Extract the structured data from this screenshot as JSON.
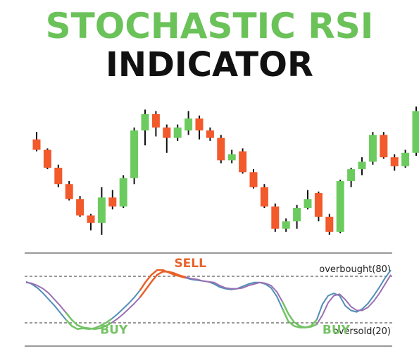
{
  "header": {
    "title_line1": "STOCHASTIC RSI",
    "title_line2": "INDICATOR"
  },
  "colors": {
    "title_green": "#6ac259",
    "title_dark": "#111111",
    "bull": "#6ccb5f",
    "bear": "#f2592b",
    "wick": "#111111",
    "stoch_k": "#4f8fb5",
    "stoch_d": "#9a6fb3",
    "signal_sell": "#e8622a",
    "signal_buy": "#74c365",
    "levels": "#333333"
  },
  "chart_data": [
    {
      "type": "candlestick",
      "title": "",
      "candles": [
        {
          "o": 72,
          "h": 77,
          "l": 64,
          "c": 65
        },
        {
          "o": 65,
          "h": 66,
          "l": 52,
          "c": 53
        },
        {
          "o": 53,
          "h": 55,
          "l": 40,
          "c": 42
        },
        {
          "o": 42,
          "h": 44,
          "l": 31,
          "c": 32
        },
        {
          "o": 32,
          "h": 34,
          "l": 20,
          "c": 21
        },
        {
          "o": 21,
          "h": 22,
          "l": 11,
          "c": 16
        },
        {
          "o": 16,
          "h": 40,
          "l": 8,
          "c": 33
        },
        {
          "o": 33,
          "h": 38,
          "l": 25,
          "c": 27
        },
        {
          "o": 27,
          "h": 48,
          "l": 26,
          "c": 46
        },
        {
          "o": 46,
          "h": 80,
          "l": 42,
          "c": 78
        },
        {
          "o": 78,
          "h": 92,
          "l": 68,
          "c": 89
        },
        {
          "o": 89,
          "h": 91,
          "l": 74,
          "c": 80
        },
        {
          "o": 80,
          "h": 82,
          "l": 63,
          "c": 73
        },
        {
          "o": 73,
          "h": 82,
          "l": 71,
          "c": 80
        },
        {
          "o": 78,
          "h": 91,
          "l": 75,
          "c": 86
        },
        {
          "o": 86,
          "h": 88,
          "l": 72,
          "c": 78
        },
        {
          "o": 78,
          "h": 80,
          "l": 71,
          "c": 73
        },
        {
          "o": 73,
          "h": 75,
          "l": 56,
          "c": 58
        },
        {
          "o": 58,
          "h": 65,
          "l": 56,
          "c": 62
        },
        {
          "o": 64,
          "h": 66,
          "l": 49,
          "c": 50
        },
        {
          "o": 50,
          "h": 52,
          "l": 39,
          "c": 40
        },
        {
          "o": 40,
          "h": 42,
          "l": 26,
          "c": 27
        },
        {
          "o": 27,
          "h": 29,
          "l": 10,
          "c": 12
        },
        {
          "o": 12,
          "h": 19,
          "l": 10,
          "c": 17
        },
        {
          "o": 17,
          "h": 28,
          "l": 12,
          "c": 26
        },
        {
          "o": 26,
          "h": 38,
          "l": 25,
          "c": 32
        },
        {
          "o": 36,
          "h": 37,
          "l": 17,
          "c": 20
        },
        {
          "o": 20,
          "h": 22,
          "l": 8,
          "c": 10
        },
        {
          "o": 10,
          "h": 45,
          "l": 9,
          "c": 44
        },
        {
          "o": 44,
          "h": 53,
          "l": 40,
          "c": 52
        },
        {
          "o": 52,
          "h": 60,
          "l": 48,
          "c": 57
        },
        {
          "o": 57,
          "h": 77,
          "l": 55,
          "c": 75
        },
        {
          "o": 75,
          "h": 77,
          "l": 59,
          "c": 60
        },
        {
          "o": 60,
          "h": 62,
          "l": 51,
          "c": 54
        },
        {
          "o": 54,
          "h": 65,
          "l": 53,
          "c": 63
        },
        {
          "o": 63,
          "h": 94,
          "l": 61,
          "c": 91
        },
        {
          "o": 91,
          "h": 101,
          "l": 90,
          "c": 98
        }
      ]
    },
    {
      "type": "line",
      "title": "",
      "ylim": [
        -10,
        110
      ],
      "levels": [
        {
          "name": "overbought",
          "value": 80,
          "label": "overbought(80)"
        },
        {
          "name": "oversold",
          "value": 20,
          "label": "oversold(20)"
        }
      ],
      "x": [
        0,
        1,
        2,
        3,
        4,
        5,
        6,
        7,
        8,
        9,
        10,
        11,
        12,
        13,
        14,
        15,
        16,
        17,
        18,
        19,
        20,
        21,
        22,
        23,
        24,
        25,
        26,
        27,
        28,
        29,
        30,
        31,
        32,
        33,
        34,
        35,
        36,
        37,
        38,
        39,
        40,
        41,
        42,
        43,
        44,
        45,
        46,
        47,
        48,
        49,
        50,
        51,
        52,
        53,
        54,
        55,
        56,
        57,
        58,
        59,
        60,
        61,
        62,
        63,
        64
      ],
      "series": [
        {
          "name": "",
          "role": "k",
          "values": [
            73,
            70,
            65,
            58,
            50,
            42,
            33,
            24,
            16,
            12,
            13,
            12,
            13,
            16,
            20,
            25,
            31,
            38,
            45,
            53,
            62,
            73,
            82,
            88,
            88,
            85,
            82,
            80,
            78,
            76,
            75,
            74,
            73,
            70,
            66,
            64,
            63,
            64,
            67,
            70,
            72,
            72,
            70,
            65,
            54,
            38,
            22,
            16,
            14,
            14,
            16,
            24,
            44,
            55,
            58,
            55,
            42,
            36,
            34,
            38,
            45,
            55,
            66,
            78,
            88
          ]
        },
        {
          "name": "",
          "role": "d",
          "values": [
            72,
            71,
            68,
            64,
            58,
            50,
            42,
            33,
            24,
            17,
            14,
            13,
            12,
            13,
            16,
            20,
            25,
            31,
            38,
            45,
            53,
            63,
            73,
            82,
            86,
            86,
            84,
            81,
            79,
            77,
            76,
            74,
            73,
            72,
            68,
            65,
            64,
            64,
            65,
            68,
            70,
            72,
            71,
            68,
            60,
            47,
            32,
            21,
            16,
            14,
            15,
            18,
            30,
            46,
            55,
            57,
            50,
            41,
            36,
            36,
            40,
            48,
            58,
            70,
            82
          ]
        }
      ],
      "annotations": [
        {
          "text": "SELL",
          "x": 26,
          "y": 92,
          "type": "sell"
        },
        {
          "text": "BUY",
          "x": 13,
          "y": 6,
          "type": "buy"
        },
        {
          "text": "BUY",
          "x": 52,
          "y": 6,
          "type": "buy"
        }
      ],
      "highlight_ranges": [
        {
          "type": "sell",
          "from": 20,
          "to": 28
        },
        {
          "type": "buy",
          "from": 7,
          "to": 15
        },
        {
          "type": "buy",
          "from": 45,
          "to": 51
        }
      ]
    }
  ]
}
